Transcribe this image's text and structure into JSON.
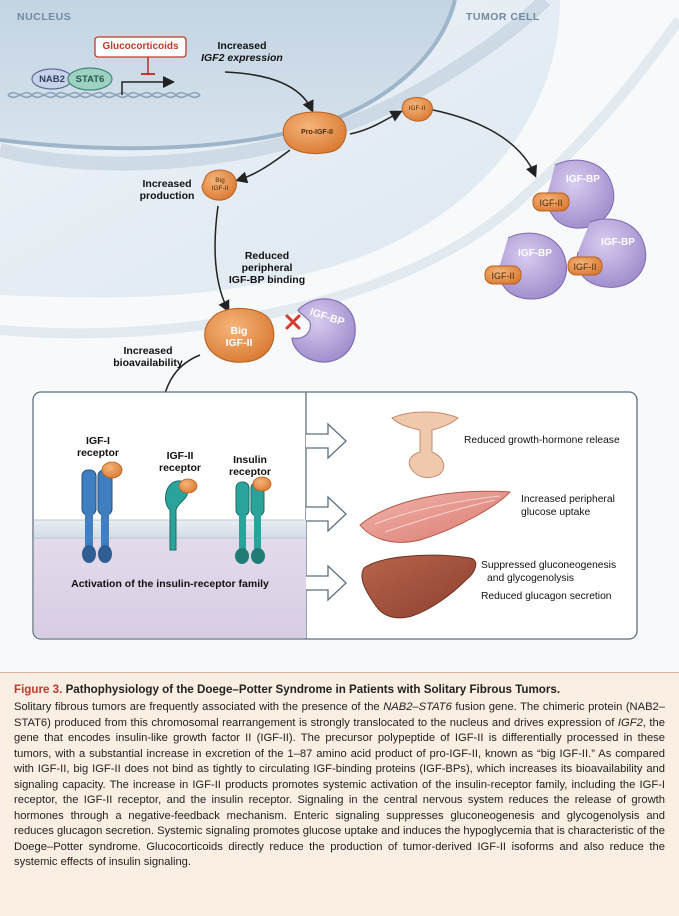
{
  "diagram": {
    "nucleus_label": "NUCLEUS",
    "tumor_label": "TUMOR CELL",
    "glucocorticoids": "Glucocorticoids",
    "nab2": "NAB2",
    "stat6": "STAT6",
    "increased_igf2_line1": "Increased",
    "increased_igf2_line2": "IGF2 expression",
    "pro_igf2": "Pro-IGF-II",
    "igf2_small": "IGF-II",
    "big_small_line1": "Big",
    "big_small_line2": "IGF-II",
    "increased_production_line1": "Increased",
    "increased_production_line2": "production",
    "igfbp": "IGF-BP",
    "igf2": "IGF-II",
    "reduced_binding_line1": "Reduced",
    "reduced_binding_line2": "peripheral",
    "reduced_binding_line3": "IGF-BP binding",
    "big_line1": "Big",
    "big_line2": "IGF-II",
    "increased_bio_line1": "Increased",
    "increased_bio_line2": "bioavailability",
    "igf1_receptor_line1": "IGF-I",
    "igf1_receptor_line2": "receptor",
    "igf2_receptor_line1": "IGF-II",
    "igf2_receptor_line2": "receptor",
    "insulin_receptor_line1": "Insulin",
    "insulin_receptor_line2": "receptor",
    "activation": "Activation of the insulin-receptor family",
    "effect1": "Reduced growth-hormone release",
    "effect2_line1": "Increased peripheral",
    "effect2_line2": "glucose uptake",
    "effect3_line1": "Suppressed gluconeogenesis",
    "effect3_line2": "and glycogenolysis",
    "effect3_line3": "Reduced glucagon secretion",
    "colors": {
      "nucleus_fill": "#cfdde9",
      "cell_fill": "#e4edf5",
      "igf_orange": "#e8924a",
      "igfbp_purple": "#b3a3d6",
      "receptor_blue": "#3f7fc1",
      "receptor_teal": "#2aa39a",
      "panel_border": "#5f6f7d",
      "red_x": "#d43b2a"
    }
  },
  "caption": {
    "figure_label": "Figure 3.",
    "title": "Pathophysiology of the Doege–Potter Syndrome in Patients with Solitary Fibrous Tumors.",
    "body_1": "Solitary fibrous tumors are frequently associated with the presence of the ",
    "body_fusion": "NAB2–STAT6",
    "body_2": " fusion gene. The chimeric protein (NAB2–STAT6) produced from this chromosomal rearrangement is strongly translocated to the nucleus and drives expression of ",
    "body_gene": "IGF2",
    "body_3": ", the gene that encodes insulin-like growth factor II (IGF-II). The precursor polypeptide of IGF-II is differentially processed in these tumors, with a substantial increase in excretion of the 1–87 amino acid product of pro-IGF-II, known as “big IGF-II.” As compared with IGF-II, big IGF-II does not bind as tightly to circulating IGF-binding proteins (IGF-BPs), which increases its bioavailability and signaling capacity. The increase in IGF-II products promotes systemic activation of the insulin-receptor family, including the IGF-I receptor, the IGF-II receptor, and the insulin receptor. Signaling in the central nervous system reduces the release of growth hormones through a negative-feedback mechanism. Enteric signaling suppresses gluconeogenesis and glycogenolysis and reduces glucagon secretion. Systemic signaling promotes glucose uptake and induces the hypoglycemia that is characteristic of the Doege–Potter syndrome. Glucocorticoids directly reduce the production of tumor-derived IGF-II isoforms and also reduce the systemic effects of insulin signaling."
  }
}
